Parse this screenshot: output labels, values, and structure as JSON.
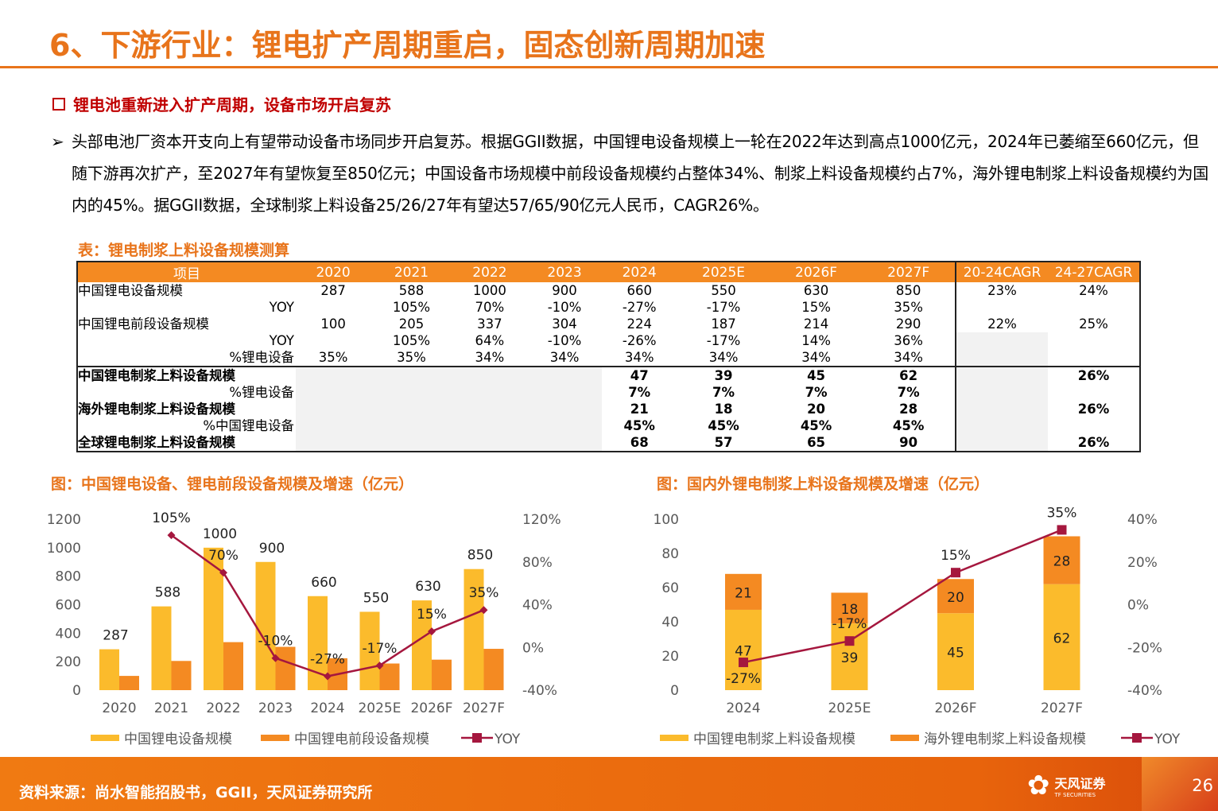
{
  "title": "6、下游行业：锂电扩产周期重启，固态创新周期加速",
  "subtitle": "锂电池重新进入扩产周期，设备市场开启复苏",
  "paragraph": "头部电池厂资本开支向上有望带动设备市场同步开启复苏。根据GGII数据，中国锂电设备规模上一轮在2022年达到高点1000亿元，2024年已萎缩至660亿元，但随下游再次扩产，至2027年有望恢复至850亿元；中国设备市场规模中前段设备规模约占整体34%、制浆上料设备规模约占7%，海外锂电制浆上料设备规模约为国内的45%。据GGII数据，全球制浆上料设备25/26/27年有望达57/65/90亿元人民币，CAGR26%。",
  "table": {
    "caption": "表：锂电制浆上料设备规模测算",
    "headers": [
      "项目",
      "2020",
      "2021",
      "2022",
      "2023",
      "2024",
      "2025E",
      "2026F",
      "2027F",
      "20-24CAGR",
      "24-27CAGR"
    ],
    "rows": [
      [
        "中国锂电设备规模",
        "287",
        "588",
        "1000",
        "900",
        "660",
        "550",
        "630",
        "850",
        "23%",
        "24%"
      ],
      [
        "YOY",
        "",
        "105%",
        "70%",
        "-10%",
        "-27%",
        "-17%",
        "15%",
        "35%",
        "",
        ""
      ],
      [
        "中国锂电前段设备规模",
        "100",
        "205",
        "337",
        "304",
        "224",
        "187",
        "214",
        "290",
        "22%",
        "25%"
      ],
      [
        "YOY",
        "",
        "105%",
        "64%",
        "-10%",
        "-26%",
        "-17%",
        "14%",
        "36%",
        "",
        ""
      ],
      [
        "%锂电设备",
        "35%",
        "35%",
        "34%",
        "34%",
        "34%",
        "34%",
        "34%",
        "34%",
        "",
        ""
      ],
      [
        "中国锂电制浆上料设备规模",
        "",
        "",
        "",
        "",
        "47",
        "39",
        "45",
        "62",
        "",
        "26%"
      ],
      [
        "%锂电设备",
        "",
        "",
        "",
        "",
        "7%",
        "7%",
        "7%",
        "7%",
        "",
        ""
      ],
      [
        "海外锂电制浆上料设备规模",
        "",
        "",
        "",
        "",
        "21",
        "18",
        "20",
        "28",
        "",
        "26%"
      ],
      [
        "%中国锂电设备",
        "",
        "",
        "",
        "",
        "45%",
        "45%",
        "45%",
        "45%",
        "",
        ""
      ],
      [
        "全球锂电制浆上料设备规模",
        "",
        "",
        "",
        "",
        "68",
        "57",
        "65",
        "90",
        "",
        "26%"
      ]
    ]
  },
  "chart_data": [
    {
      "type": "bar+line",
      "title": "图：中国锂电设备、锂电前段设备规模及增速（亿元）",
      "categories": [
        "2020",
        "2021",
        "2022",
        "2023",
        "2024",
        "2025E",
        "2026F",
        "2027F"
      ],
      "series": [
        {
          "name": "中国锂电设备规模",
          "type": "bar",
          "values": [
            287,
            588,
            1000,
            900,
            660,
            550,
            630,
            850
          ],
          "color": "#fbbb2c"
        },
        {
          "name": "中国锂电前段设备规模",
          "type": "bar",
          "values": [
            100,
            205,
            337,
            304,
            224,
            187,
            214,
            290
          ],
          "color": "#f48a22"
        },
        {
          "name": "YOY",
          "type": "line",
          "axis": "right",
          "values": [
            null,
            105,
            70,
            -10,
            -27,
            -17,
            15,
            35
          ],
          "color": "#a5173e"
        }
      ],
      "ylim": [
        0,
        1200
      ],
      "yticks": [
        "0",
        "200",
        "400",
        "600",
        "800",
        "1000",
        "1200"
      ],
      "y2lim": [
        -40,
        120
      ],
      "y2ticks": [
        "-40%",
        "0%",
        "40%",
        "80%",
        "120%"
      ],
      "legend": "bottom"
    },
    {
      "type": "stacked-bar+line",
      "title": "图：国内外锂电制浆上料设备规模及增速（亿元）",
      "categories": [
        "2024",
        "2025E",
        "2026F",
        "2027F"
      ],
      "series": [
        {
          "name": "中国锂电制浆上料设备规模",
          "type": "bar",
          "values": [
            47,
            39,
            45,
            62
          ],
          "color": "#fbbb2c"
        },
        {
          "name": "海外锂电制浆上料设备规模",
          "type": "bar",
          "values": [
            21,
            18,
            20,
            28
          ],
          "color": "#f48a22"
        },
        {
          "name": "YOY",
          "type": "line",
          "axis": "right",
          "values": [
            -27,
            -17,
            15,
            35
          ],
          "color": "#a5173e"
        }
      ],
      "ylim": [
        0,
        100
      ],
      "yticks": [
        "0",
        "20",
        "40",
        "60",
        "80",
        "100"
      ],
      "y2lim": [
        -40,
        40
      ],
      "y2ticks": [
        "-40%",
        "-20%",
        "0%",
        "20%",
        "40%"
      ],
      "legend": "bottom"
    }
  ],
  "footer": {
    "source": "资料来源：尚水智能招股书，GGII，天风证券研究所",
    "logo_cn": "天风证券",
    "logo_en": "TF SECURITIES",
    "page": "26"
  }
}
